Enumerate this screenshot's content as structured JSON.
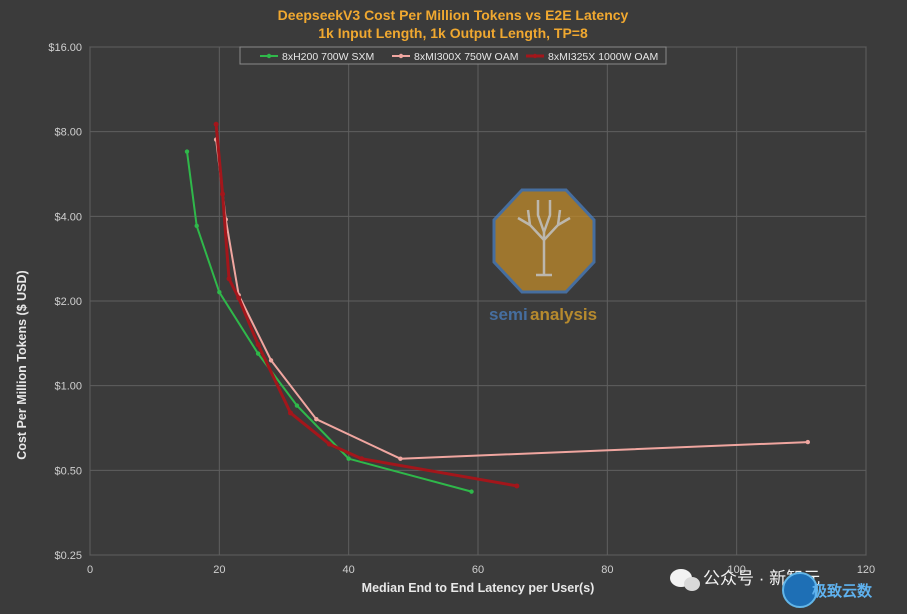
{
  "chart_data": {
    "type": "line",
    "title": "DeepseekV3  Cost Per Million Tokens vs E2E Latency",
    "subtitle": "1k Input Length, 1k Output Length, TP=8",
    "xlabel": "Median End to End Latency per User(s)",
    "ylabel": "Cost Per Million Tokens ($ USD)",
    "xlim": [
      0,
      120
    ],
    "ylim": [
      0.25,
      16
    ],
    "yscale": "log2",
    "xticks": [
      0,
      20,
      40,
      60,
      80,
      100,
      120
    ],
    "yticks": [
      0.25,
      0.5,
      1,
      2,
      4,
      8,
      16
    ],
    "ytick_labels": [
      "$0.25",
      "$0.50",
      "$1.00",
      "$2.00",
      "$4.00",
      "$8.00",
      "$16.00"
    ],
    "grid": true,
    "legend_position": "top",
    "series": [
      {
        "name": "8xH200 700W SXM",
        "color": "#2fb84a",
        "x": [
          15,
          16.5,
          20,
          26,
          32,
          40,
          59
        ],
        "y": [
          6.8,
          3.7,
          2.15,
          1.3,
          0.85,
          0.55,
          0.42
        ]
      },
      {
        "name": "8xMI300X 750W OAM",
        "color": "#f0a6a0",
        "x": [
          19.5,
          21,
          23,
          28,
          35,
          48,
          111
        ],
        "y": [
          7.5,
          3.9,
          2.1,
          1.23,
          0.76,
          0.55,
          0.63
        ]
      },
      {
        "name": "8xMI325X 1000W OAM",
        "color": "#a3161b",
        "x": [
          19.5,
          20.5,
          21.5,
          23,
          26,
          31,
          37,
          42,
          66
        ],
        "y": [
          8.5,
          4.8,
          2.4,
          2.05,
          1.4,
          0.8,
          0.62,
          0.55,
          0.44
        ]
      }
    ]
  },
  "watermark": {
    "text_semi": "semi",
    "text_analysis": "analysis",
    "color_semi": "#4a7fc1",
    "color_analysis": "#e0a52a"
  },
  "social_overlay": {
    "text": "公众号 · 新智元",
    "badge_text": "极致云数"
  }
}
